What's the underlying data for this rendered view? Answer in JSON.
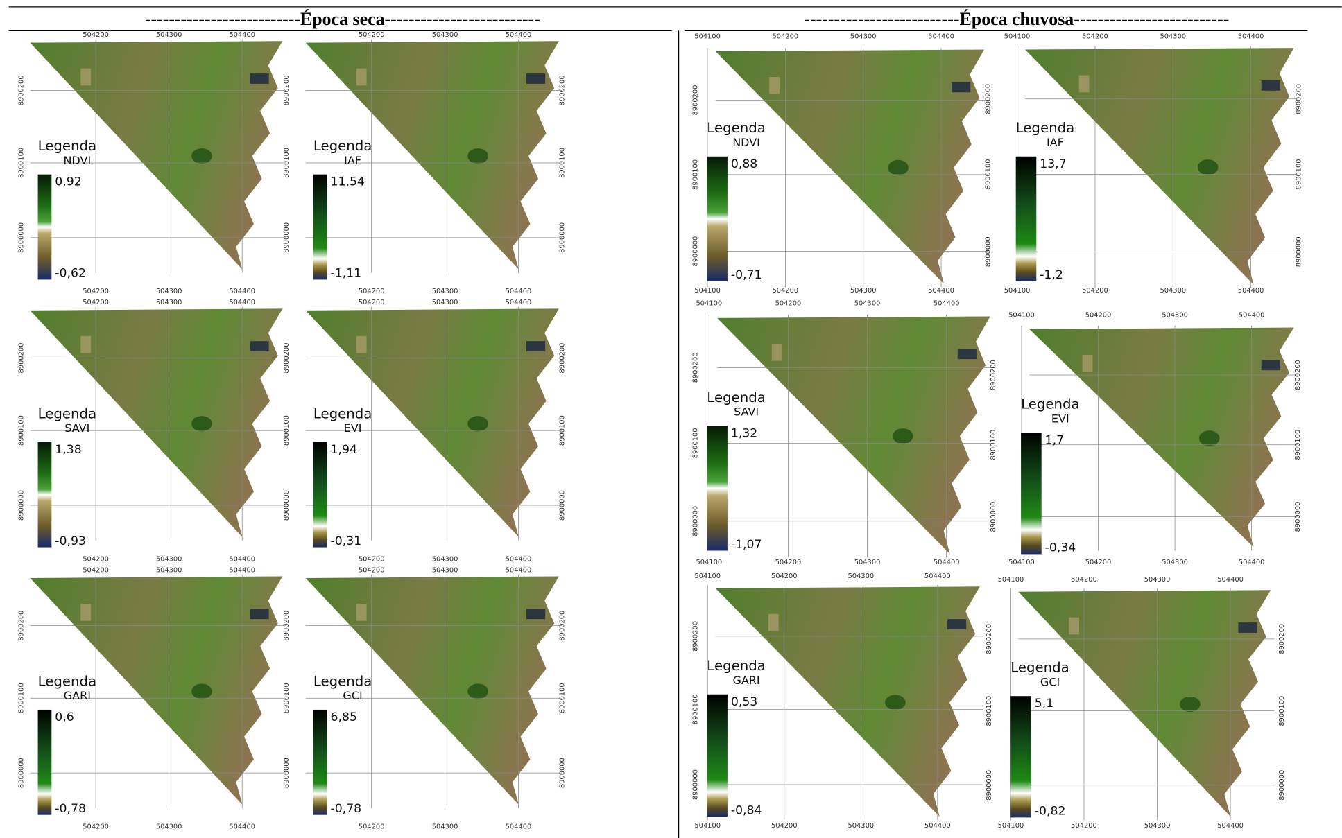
{
  "headers": [
    "--------------------------Época seca--------------------------",
    "--------------------------Época chuvosa--------------------------"
  ],
  "panels": [
    {
      "legend": "Legenda",
      "index": "NDVI",
      "max": "0,92",
      "min": "-0,62",
      "x_top": [
        "504200",
        "504300",
        "504400"
      ],
      "x_bottom": [
        "504200",
        "504300",
        "504400"
      ],
      "y_left": [
        "8900200",
        "8900100",
        "8900000"
      ]
    },
    {
      "legend": "Legenda",
      "index": "IAF",
      "max": "11,54",
      "min": "-1,11",
      "x_top": [
        "504200",
        "504300",
        "504400"
      ],
      "x_bottom": [
        "504200",
        "504300",
        "504400"
      ],
      "y_left": [
        "8900200",
        "8900100",
        "8900000"
      ],
      "y_right": [
        "8900200",
        "8900100",
        "8900000"
      ]
    },
    {
      "legend": "Legenda",
      "index": "SAVI",
      "max": "1,38",
      "min": "-0,93",
      "x_top": [
        "504200",
        "504300",
        "504400"
      ],
      "x_bottom": [
        "504200",
        "504300",
        "504400"
      ],
      "y_left": [
        "8900200",
        "8900100",
        "8900000"
      ]
    },
    {
      "legend": "Legenda",
      "index": "EVI",
      "max": "1,94",
      "min": "-0,31",
      "x_top": [
        "504200",
        "504300",
        "504400"
      ],
      "x_bottom": [
        "504200",
        "504300",
        "504400"
      ],
      "y_left": [
        "8900200",
        "8900100",
        "8900000"
      ],
      "y_right": [
        "8900200",
        "8900100",
        "8900000"
      ]
    },
    {
      "legend": "Legenda",
      "index": "GARI",
      "max": "0,6",
      "min": "-0,78",
      "x_top": [
        "504200",
        "504300",
        "504400"
      ],
      "x_bottom": [
        "504200",
        "504300",
        "504400"
      ],
      "y_left": [
        "8900200",
        "8900100",
        "8900000"
      ]
    },
    {
      "legend": "Legenda",
      "index": "GCI",
      "max": "6,85",
      "min": "-0,78",
      "x_top": [
        "504200",
        "504300",
        "504400"
      ],
      "x_bottom": [
        "504200",
        "504300",
        "504400"
      ],
      "y_left": [
        "8900200",
        "8900100",
        "8900000"
      ],
      "y_right": [
        "8900200",
        "8900100",
        "8900000"
      ]
    },
    {
      "legend": "Legenda",
      "index": "NDVI",
      "max": "0,88",
      "min": "-0,71",
      "x_top": [
        "504100",
        "504200",
        "504300",
        "504400"
      ],
      "x_bottom": [
        "504100",
        "504200",
        "504300",
        "504400"
      ],
      "y_left": [
        "8900200",
        "8900100",
        "8900000"
      ]
    },
    {
      "legend": "Legenda",
      "index": "IAF",
      "max": "13,7",
      "min": "-1,2",
      "x_top": [
        "504100",
        "504200",
        "504300",
        "504400"
      ],
      "x_bottom": [
        "504100",
        "504200",
        "504300",
        "504400"
      ],
      "y_left": [
        "8900200",
        "8900100",
        "8900000"
      ],
      "y_right": [
        "8900200",
        "8900100",
        "8900000"
      ]
    },
    {
      "legend": "Legenda",
      "index": "SAVI",
      "max": "1,32",
      "min": "-1,07",
      "x_top": [
        "504100",
        "504200",
        "504300",
        "504400"
      ],
      "x_bottom": [
        "504100",
        "504200",
        "504300",
        "504400"
      ],
      "y_left": [
        "8900200",
        "8900100",
        "8900000"
      ]
    },
    {
      "legend": "Legenda",
      "index": "EVI",
      "max": "1,7",
      "min": "-0,34",
      "x_top": [
        "504100",
        "504200",
        "504300",
        "504400"
      ],
      "x_bottom": [
        "504100",
        "504200",
        "504300",
        "504400"
      ],
      "y_left": [
        "8900200",
        "8900100",
        "8900000"
      ],
      "y_right": [
        "8900200",
        "8900100",
        "8900000"
      ]
    },
    {
      "legend": "Legenda",
      "index": "GARI",
      "max": "0,53",
      "min": "-0,84",
      "x_top": [
        "504100",
        "504200",
        "504300",
        "504400"
      ],
      "x_bottom": [
        "504100",
        "504200",
        "504300",
        "504400"
      ],
      "y_left": [
        "8900200",
        "8900100",
        "8900000"
      ]
    },
    {
      "legend": "Legenda",
      "index": "GCI",
      "max": "5,1",
      "min": "-0,82",
      "x_top": [
        "504100",
        "504200",
        "504300",
        "504400"
      ],
      "x_bottom": [
        "504100",
        "504200",
        "504300",
        "504400"
      ],
      "y_left": [
        "8900200",
        "8900100",
        "8900000"
      ],
      "y_right": [
        "8900200",
        "8900100",
        "8900000"
      ]
    }
  ]
}
